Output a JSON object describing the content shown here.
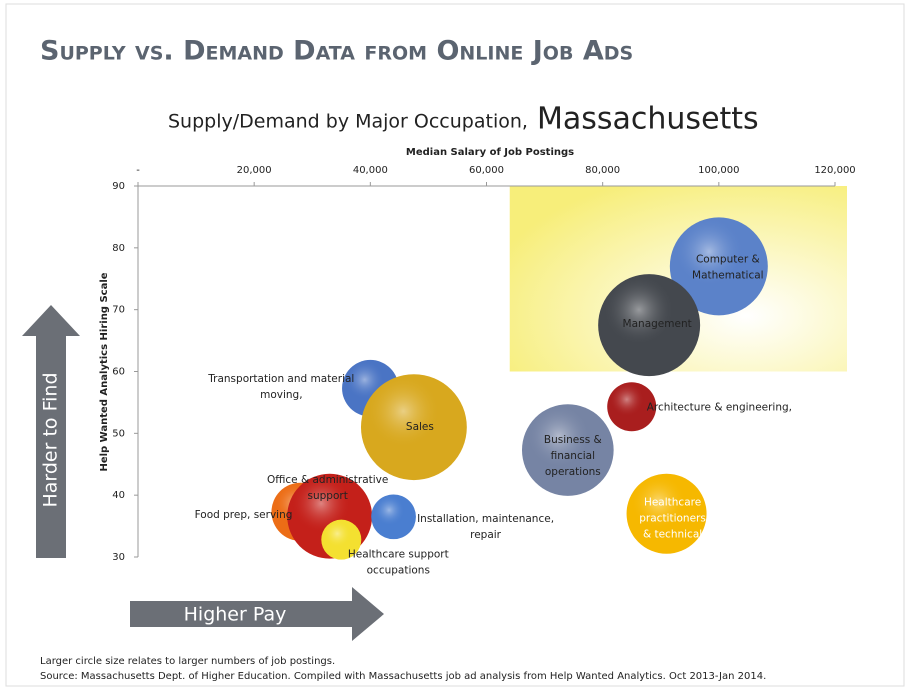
{
  "page_title": "Supply vs. Demand Data from Online Job Ads",
  "chart_data": {
    "type": "bubble",
    "title": "Supply/Demand by Major Occupation,",
    "title_region": "Massachusetts",
    "x_label": "Median Salary of Job Postings",
    "y_label": "Help Wanted Analytics Hiring Scale",
    "xlim": [
      0,
      120000
    ],
    "xticks": [
      {
        "value": 0,
        "label": "-"
      },
      {
        "value": 20000,
        "label": "20,000"
      },
      {
        "value": 40000,
        "label": "40,000"
      },
      {
        "value": 60000,
        "label": "60,000"
      },
      {
        "value": 80000,
        "label": "80,000"
      },
      {
        "value": 100000,
        "label": "100,000"
      },
      {
        "value": 120000,
        "label": "120,000"
      }
    ],
    "ylim": [
      30,
      90
    ],
    "yticks": [
      30,
      40,
      50,
      60,
      70,
      80,
      90
    ],
    "highlight": {
      "xlim": [
        64000,
        120000
      ],
      "ylim": [
        60,
        90
      ],
      "color": "#f7ee7a"
    },
    "series": [
      {
        "label": [
          "Computer &",
          "Mathematical"
        ],
        "x": 100000,
        "y": 77,
        "size": 24,
        "color": "#5b82c9"
      },
      {
        "label": [
          "Management"
        ],
        "x": 88000,
        "y": 67.5,
        "size": 26,
        "color": "#44484e"
      },
      {
        "label": [
          "Transportation and material",
          "moving,"
        ],
        "x": 40000,
        "y": 57.3,
        "size": 8,
        "color": "#4a74c4"
      },
      {
        "label": [
          "Sales"
        ],
        "x": 47500,
        "y": 51,
        "size": 28,
        "color": "#d8a81e"
      },
      {
        "label": [
          "Architecture & engineering,"
        ],
        "x": 85000,
        "y": 54.3,
        "size": 6,
        "color": "#a91e1e"
      },
      {
        "label": [
          "Business &",
          "financial",
          "operations"
        ],
        "x": 74000,
        "y": 47.3,
        "size": 21,
        "color": "#7684a4"
      },
      {
        "label": [
          "Food prep, serving"
        ],
        "x": 28000,
        "y": 37.3,
        "size": 8.5,
        "color": "#ec6d16"
      },
      {
        "label": [
          "Office & administrative",
          "support"
        ],
        "x": 33000,
        "y": 36.6,
        "size": 18,
        "color": "#c4201a"
      },
      {
        "label": [
          "Healthcare support",
          "occupations"
        ],
        "x": 35000,
        "y": 32.8,
        "size": 4,
        "color": "#f4e030"
      },
      {
        "label": [
          "Installation, maintenance,",
          "repair"
        ],
        "x": 44000,
        "y": 36.5,
        "size": 5,
        "color": "#4a7ed0"
      },
      {
        "label": [
          "Healthcare",
          "practitioners",
          "& technical"
        ],
        "x": 91000,
        "y": 37,
        "size": 16,
        "color": "#f6b800"
      }
    ],
    "arrow_y": "Harder to Find",
    "arrow_x": "Higher Pay",
    "notes": [
      "Larger circle size relates to larger numbers of job postings.",
      "Source: Massachusetts Dept. of Higher Education.  Compiled with Massachusetts job ad analysis from Help Wanted Analytics.  Oct 2013-Jan 2014."
    ]
  }
}
